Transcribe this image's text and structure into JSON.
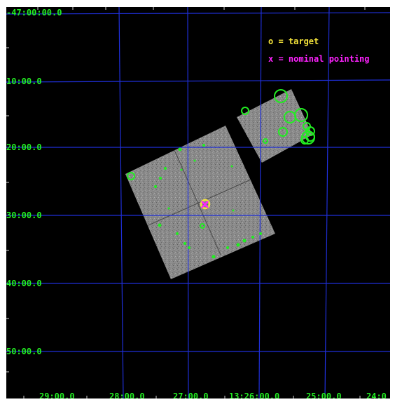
{
  "image": {
    "dec_labels": [
      "-47:00:00.0",
      "10:00.0",
      "20:00.0",
      "30:00.0",
      "40:00.0",
      "50:00.0"
    ],
    "ra_labels": [
      "29:00.0",
      "28:00.0",
      "27:00.0",
      "13:26:00.0",
      "25:00.0",
      "24:0"
    ],
    "legend": {
      "target": "o = target",
      "nominal": "x = nominal pointing"
    },
    "colors": {
      "background": "#000000",
      "grid": "#1f2fd8",
      "sources": "#22ee22",
      "target": "#f4e33a",
      "nominal": "#ff22ff",
      "detector": "#8a8a8a"
    }
  }
}
